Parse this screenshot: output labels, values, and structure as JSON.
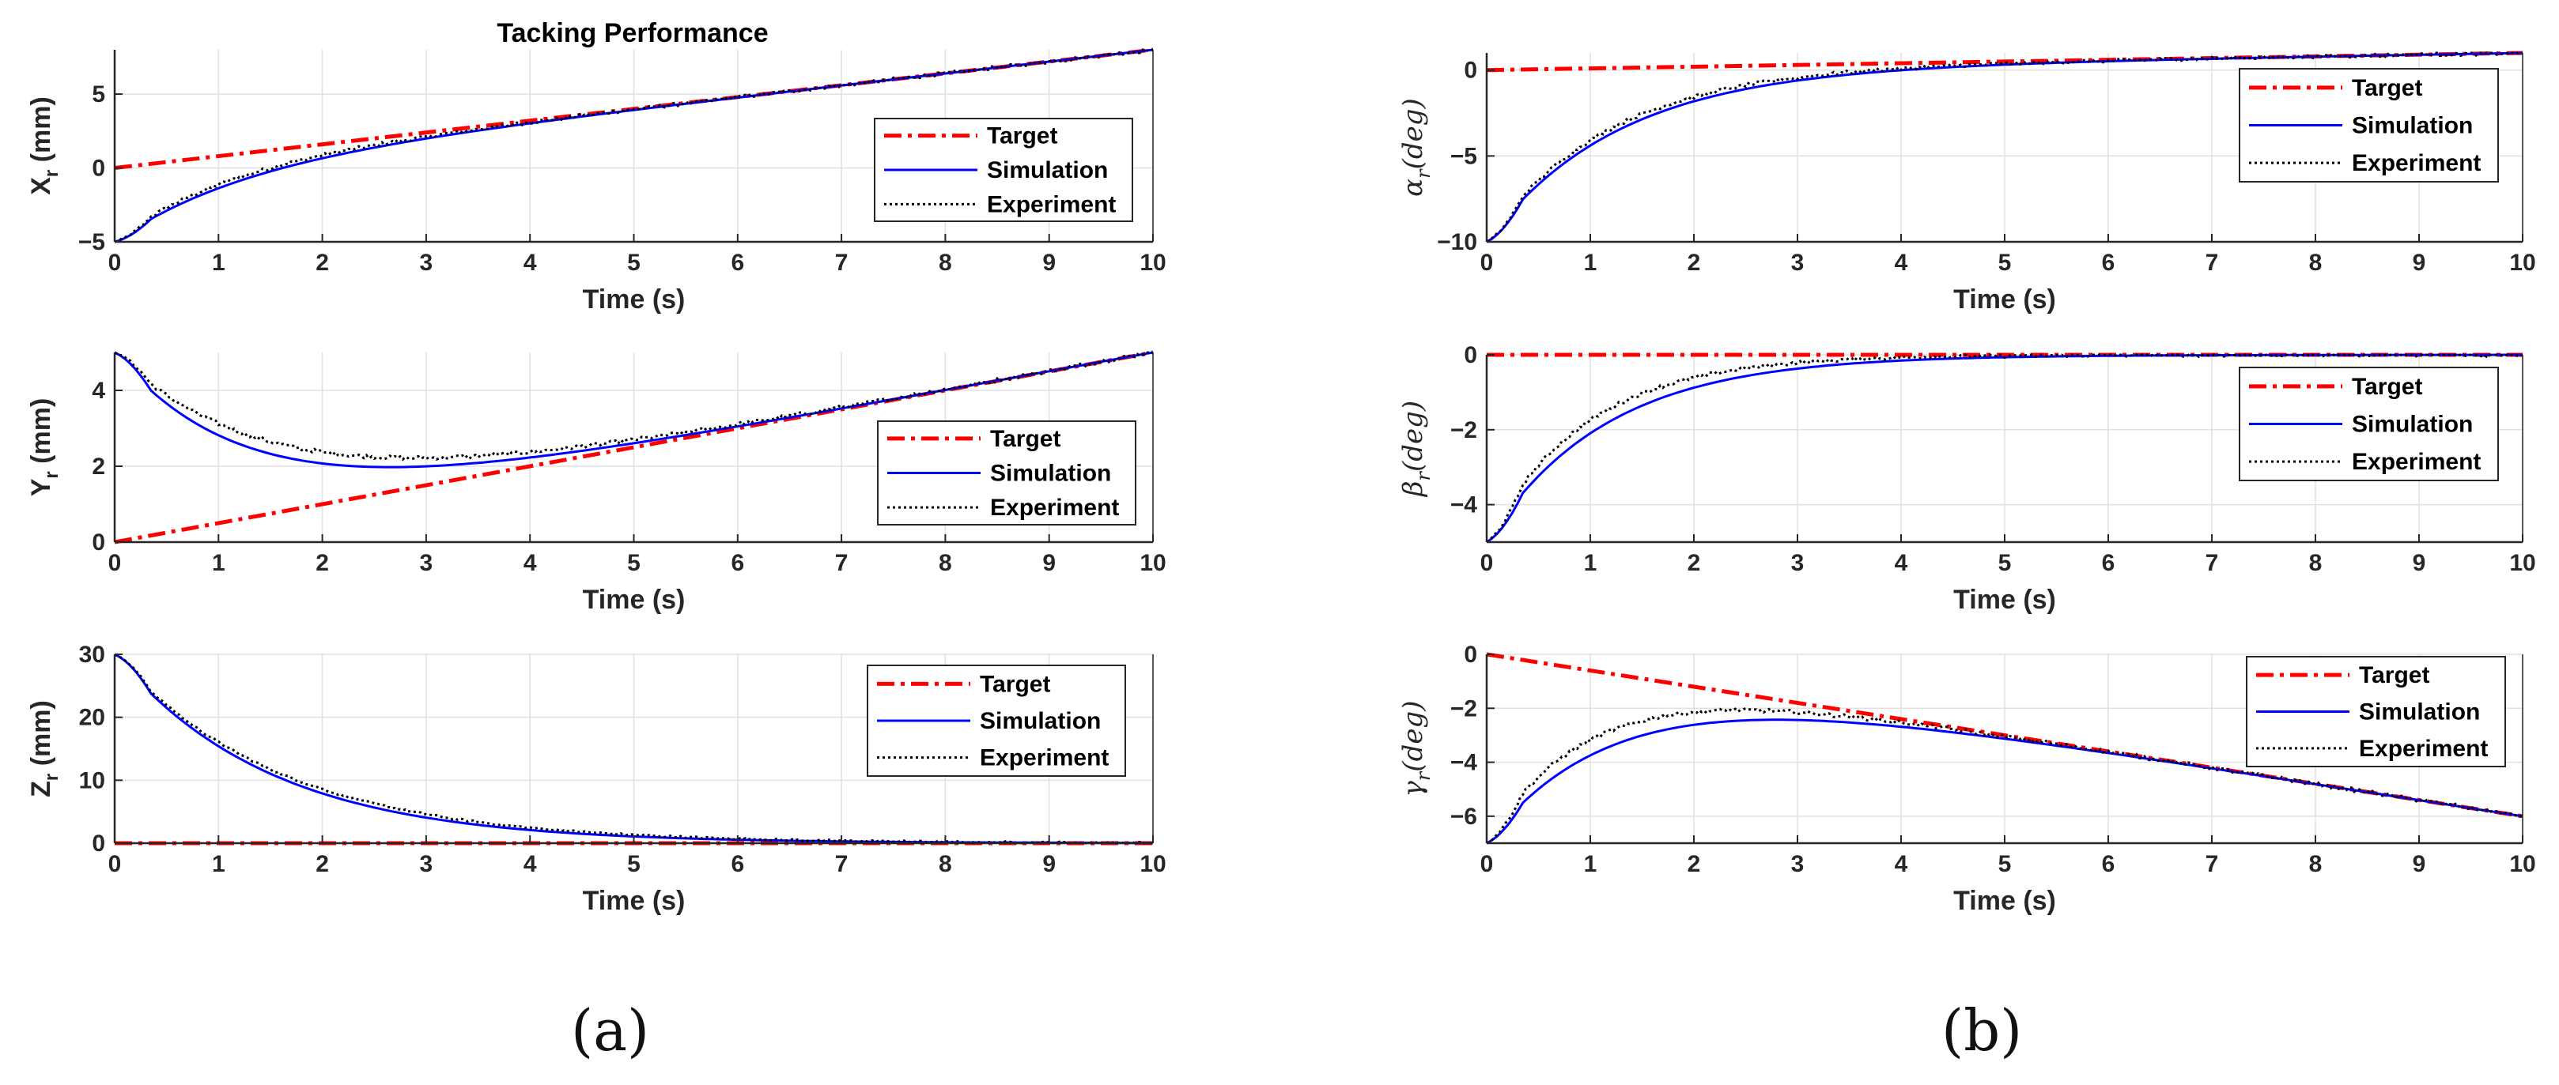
{
  "figure_title": "Tacking Performance",
  "panel_labels": [
    "(a)",
    "(b)"
  ],
  "colors": {
    "target": "#ff0000",
    "simulation": "#0000ff",
    "experiment": "#000000",
    "grid": "#e0e0e0",
    "axis": "#262626"
  },
  "chart_data": [
    {
      "type": "line",
      "panel": "a",
      "row": 0,
      "ylabel": "X",
      "ylabel_sub": "r",
      "ylabel_unit": " (mm)",
      "ylabel_math": false,
      "xlabel": "Time (s)",
      "xlim": [
        0,
        10
      ],
      "ylim": [
        -5,
        8
      ],
      "xticks": [
        0,
        1,
        2,
        3,
        4,
        5,
        6,
        7,
        8,
        9,
        10
      ],
      "yticks": [
        -5,
        0,
        5
      ],
      "ytick_labels": [
        "−5",
        "0",
        "5"
      ],
      "legend": [
        "Target",
        "Simulation",
        "Experiment"
      ],
      "legend_position": "center-right",
      "series": [
        {
          "name": "Target",
          "style": "dashdot",
          "x": [
            0,
            10
          ],
          "y": [
            0,
            8
          ]
        },
        {
          "name": "Simulation",
          "style": "solid",
          "kind": "exp",
          "line": [
            0,
            0.8
          ],
          "start": -5,
          "tau": 1.2,
          "peak": 0
        },
        {
          "name": "Experiment",
          "style": "dotted",
          "kind": "exp",
          "line": [
            0,
            0.8
          ],
          "start": -5,
          "tau": 1.05,
          "peak": 0,
          "noise": 0.12
        }
      ]
    },
    {
      "type": "line",
      "panel": "a",
      "row": 1,
      "ylabel": "Y",
      "ylabel_sub": "r",
      "ylabel_unit": " (mm)",
      "ylabel_math": false,
      "xlabel": "Time (s)",
      "xlim": [
        0,
        10
      ],
      "ylim": [
        0,
        5
      ],
      "xticks": [
        0,
        1,
        2,
        3,
        4,
        5,
        6,
        7,
        8,
        9,
        10
      ],
      "yticks": [
        0,
        2,
        4
      ],
      "ytick_labels": [
        "0",
        "2",
        "4"
      ],
      "legend": [
        "Target",
        "Simulation",
        "Experiment"
      ],
      "legend_position": "center-right",
      "series": [
        {
          "name": "Target",
          "style": "dashdot",
          "x": [
            0,
            10
          ],
          "y": [
            0,
            5
          ]
        },
        {
          "name": "Simulation",
          "style": "solid",
          "kind": "exp",
          "line": [
            0,
            0.5
          ],
          "start": 5,
          "tau": 1.3,
          "peak": 0
        },
        {
          "name": "Experiment",
          "style": "dotted",
          "kind": "exp",
          "line": [
            0,
            0.5
          ],
          "start": 5,
          "tau": 1.55,
          "peak": 0,
          "noise": 0.05
        }
      ]
    },
    {
      "type": "line",
      "panel": "a",
      "row": 2,
      "ylabel": "Z",
      "ylabel_sub": "r",
      "ylabel_unit": " (mm)",
      "ylabel_math": false,
      "xlabel": "Time (s)",
      "xlim": [
        0,
        10
      ],
      "ylim": [
        0,
        30
      ],
      "xticks": [
        0,
        1,
        2,
        3,
        4,
        5,
        6,
        7,
        8,
        9,
        10
      ],
      "yticks": [
        0,
        10,
        20,
        30
      ],
      "ytick_labels": [
        "0",
        "10",
        "20",
        "30"
      ],
      "legend": [
        "Target",
        "Simulation",
        "Experiment"
      ],
      "legend_position": "top-right",
      "series": [
        {
          "name": "Target",
          "style": "dashdot",
          "x": [
            0,
            10
          ],
          "y": [
            0,
            0
          ]
        },
        {
          "name": "Simulation",
          "style": "solid",
          "kind": "exp",
          "line": [
            0,
            0
          ],
          "start": 30,
          "tau": 1.5,
          "peak": 0
        },
        {
          "name": "Experiment",
          "style": "dotted",
          "kind": "exp",
          "line": [
            0,
            0
          ],
          "start": 30,
          "tau": 1.6,
          "peak": 0,
          "noise": 0.15
        }
      ]
    },
    {
      "type": "line",
      "panel": "b",
      "row": 0,
      "ylabel": "α",
      "ylabel_sub": "r",
      "ylabel_unit": "(deg)",
      "ylabel_math": true,
      "xlabel": "Time (s)",
      "xlim": [
        0,
        10
      ],
      "ylim": [
        -10,
        1
      ],
      "xticks": [
        0,
        1,
        2,
        3,
        4,
        5,
        6,
        7,
        8,
        9,
        10
      ],
      "yticks": [
        -10,
        -5,
        0
      ],
      "ytick_labels": [
        "−10",
        "−5",
        "0"
      ],
      "legend": [
        "Target",
        "Simulation",
        "Experiment"
      ],
      "legend_position": "top-right",
      "series": [
        {
          "name": "Target",
          "style": "dashdot",
          "x": [
            0,
            10
          ],
          "y": [
            0,
            1
          ]
        },
        {
          "name": "Simulation",
          "style": "solid",
          "kind": "exp",
          "line": [
            0,
            0.1
          ],
          "start": -10,
          "tau": 1.25,
          "peak": 0.5
        },
        {
          "name": "Experiment",
          "style": "dotted",
          "kind": "exp",
          "line": [
            0,
            0.1
          ],
          "start": -10,
          "tau": 1.15,
          "peak": 0.5,
          "noise": 0.1
        }
      ]
    },
    {
      "type": "line",
      "panel": "b",
      "row": 1,
      "ylabel": "β",
      "ylabel_sub": "r",
      "ylabel_unit": "(deg)",
      "ylabel_math": true,
      "xlabel": "Time (s)",
      "xlim": [
        0,
        10
      ],
      "ylim": [
        -5,
        0
      ],
      "xticks": [
        0,
        1,
        2,
        3,
        4,
        5,
        6,
        7,
        8,
        9,
        10
      ],
      "yticks": [
        -4,
        -2,
        0
      ],
      "ytick_labels": [
        "−4",
        "−2",
        "0"
      ],
      "legend": [
        "Target",
        "Simulation",
        "Experiment"
      ],
      "legend_position": "top-right",
      "series": [
        {
          "name": "Target",
          "style": "dashdot",
          "x": [
            0,
            10
          ],
          "y": [
            0,
            0
          ]
        },
        {
          "name": "Simulation",
          "style": "solid",
          "kind": "exp",
          "line": [
            0,
            0
          ],
          "start": -5,
          "tau": 1.15,
          "peak": 0.35
        },
        {
          "name": "Experiment",
          "style": "dotted",
          "kind": "exp",
          "line": [
            0,
            0
          ],
          "start": -5,
          "tau": 0.95,
          "peak": 0.35,
          "noise": 0.05
        }
      ]
    },
    {
      "type": "line",
      "panel": "b",
      "row": 2,
      "ylabel": "γ",
      "ylabel_sub": "r",
      "ylabel_unit": "(deg)",
      "ylabel_math": true,
      "xlabel": "Time (s)",
      "xlim": [
        0,
        10
      ],
      "ylim": [
        -7,
        0
      ],
      "xticks": [
        0,
        1,
        2,
        3,
        4,
        5,
        6,
        7,
        8,
        9,
        10
      ],
      "yticks": [
        -6,
        -4,
        -2,
        0
      ],
      "ytick_labels": [
        "−6",
        "−4",
        "−2",
        "0"
      ],
      "legend": [
        "Target",
        "Simulation",
        "Experiment"
      ],
      "legend_position": "top-right",
      "series": [
        {
          "name": "Target",
          "style": "dashdot",
          "x": [
            0,
            10
          ],
          "y": [
            0,
            -6
          ]
        },
        {
          "name": "Simulation",
          "style": "solid",
          "kind": "exp",
          "line": [
            0,
            -0.6
          ],
          "start": -7,
          "tau": 1.25,
          "peak": 0.35
        },
        {
          "name": "Experiment",
          "style": "dotted",
          "kind": "exp",
          "line": [
            0,
            -0.6
          ],
          "start": -7,
          "tau": 1.0,
          "peak": 0.35,
          "noise": 0.07
        }
      ]
    }
  ]
}
